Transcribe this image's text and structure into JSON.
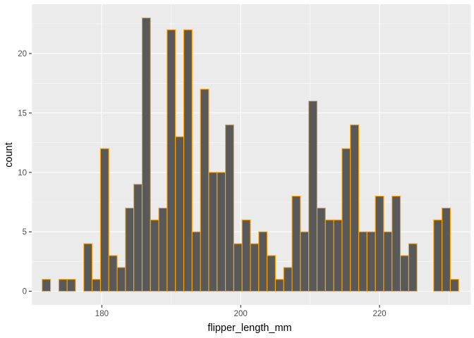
{
  "chart_data": {
    "type": "bar",
    "xlabel": "flipper_length_mm",
    "ylabel": "count",
    "xlim": [
      169.9,
      233.1
    ],
    "ylim": [
      -1.15,
      24.15
    ],
    "bin_width": 1.2,
    "x": [
      172.0,
      173.2,
      174.4,
      175.6,
      176.8,
      178.0,
      179.2,
      180.4,
      181.6,
      182.8,
      184.0,
      185.2,
      186.4,
      187.6,
      188.8,
      190.0,
      191.2,
      192.4,
      193.6,
      194.8,
      196.0,
      197.2,
      198.4,
      199.6,
      200.8,
      202.0,
      203.2,
      204.4,
      205.6,
      206.8,
      208.0,
      209.2,
      210.4,
      211.6,
      212.8,
      214.0,
      215.2,
      216.4,
      217.6,
      218.8,
      220.0,
      221.2,
      222.4,
      223.6,
      224.8,
      226.0,
      227.2,
      228.4,
      229.6,
      230.8
    ],
    "values": [
      1,
      0,
      1,
      1,
      0,
      4,
      1,
      12,
      3,
      2,
      7,
      9,
      23,
      6,
      7,
      22,
      13,
      22,
      5,
      17,
      10,
      10,
      14,
      4,
      6,
      4,
      5,
      3,
      1,
      2,
      8,
      5,
      16,
      7,
      6,
      6,
      12,
      14,
      5,
      5,
      8,
      5,
      8,
      3,
      4,
      0,
      0,
      6,
      7,
      1
    ],
    "x_ticks": [
      180,
      200,
      220
    ],
    "x_minor_ticks": [
      170,
      190,
      210,
      230
    ],
    "y_ticks": [
      0,
      5,
      10,
      15,
      20
    ],
    "y_minor_ticks": [
      2.5,
      7.5,
      12.5,
      17.5,
      22.5
    ],
    "grid": true,
    "colors": {
      "panel": "#ebebeb",
      "grid": "#ffffff",
      "bar_fill": "#595959",
      "bar_outline": "#ffa500"
    }
  }
}
